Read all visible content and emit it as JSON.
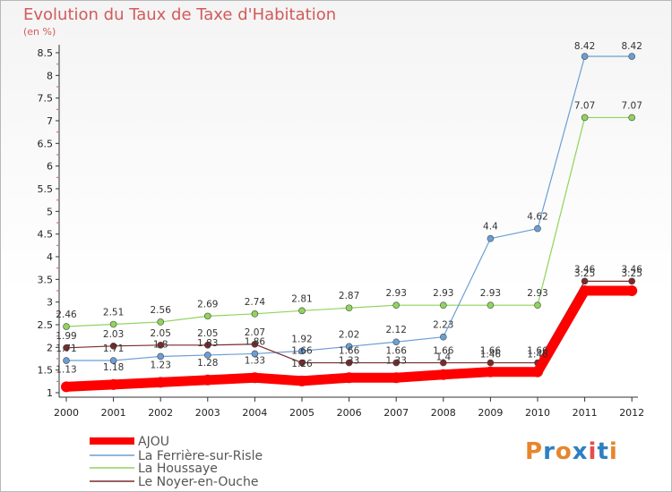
{
  "header": {
    "title": "Evolution du Taux de Taxe d'Habitation",
    "subtitle": "(en %)"
  },
  "logo": {
    "text": "Proxiti",
    "colors": [
      "#e8852b",
      "#2f7fc1",
      "#e8852b",
      "#2f7fc1",
      "#e94b4b",
      "#2f7fc1",
      "#e8852b"
    ]
  },
  "chart_data": {
    "type": "line",
    "title": "Evolution du Taux de Taxe d'Habitation",
    "subtitle": "(en %)",
    "xlabel": "",
    "ylabel": "",
    "x": [
      "2000",
      "2001",
      "2002",
      "2003",
      "2004",
      "2005",
      "2006",
      "2007",
      "2008",
      "2009",
      "2010",
      "2011",
      "2012"
    ],
    "ylim": [
      1,
      8.5
    ],
    "yticks": [
      "1",
      "1.5",
      "2",
      "2.5",
      "3",
      "3.5",
      "4",
      "4.5",
      "5",
      "5.5",
      "6",
      "6.5",
      "7",
      "7.5",
      "8",
      "8.5"
    ],
    "grid": false,
    "legend": "bottom-left",
    "series": [
      {
        "name": "AJOU",
        "color": "#ff0000",
        "values": [
          1.13,
          1.18,
          1.23,
          1.28,
          1.33,
          1.26,
          1.33,
          1.33,
          1.4,
          1.46,
          1.46,
          3.25,
          3.25
        ],
        "labels": [
          "1.13",
          "1.18",
          "1.23",
          "1.28",
          "1.33",
          "1.26",
          "1.33",
          "1.33",
          "1.4",
          "1.46",
          "1.46",
          "3.25",
          "3.25"
        ]
      },
      {
        "name": "La Ferrière-sur-Risle",
        "color": "#6a9fd4",
        "values": [
          1.71,
          1.71,
          1.8,
          1.83,
          1.86,
          1.92,
          2.02,
          2.12,
          2.23,
          4.4,
          4.62,
          8.42,
          8.42
        ],
        "labels": [
          "1.71",
          "1.71",
          "1.8",
          "1.83",
          "1.86",
          "1.92",
          "2.02",
          "2.12",
          "2.23",
          "4.4",
          "4.62",
          "8.42",
          "8.42"
        ]
      },
      {
        "name": "La Houssaye",
        "color": "#8fd45c",
        "values": [
          2.46,
          2.51,
          2.56,
          2.69,
          2.74,
          2.81,
          2.87,
          2.93,
          2.93,
          2.93,
          2.93,
          7.07,
          7.07
        ],
        "labels": [
          "2.46",
          "2.51",
          "2.56",
          "2.69",
          "2.74",
          "2.81",
          "2.87",
          "2.93",
          "2.93",
          "2.93",
          "2.93",
          "7.07",
          "7.07"
        ]
      },
      {
        "name": "Le Noyer-en-Ouche",
        "color": "#7a2b2b",
        "values": [
          1.99,
          2.03,
          2.05,
          2.05,
          2.07,
          1.66,
          1.66,
          1.66,
          1.66,
          1.66,
          1.66,
          3.46,
          3.46
        ],
        "labels": [
          "1.99",
          "2.03",
          "2.05",
          "2.05",
          "2.07",
          "1.66",
          "1.66",
          "1.66",
          "1.66",
          "1.66",
          "1.66",
          "3.46",
          "3.46"
        ]
      }
    ]
  }
}
